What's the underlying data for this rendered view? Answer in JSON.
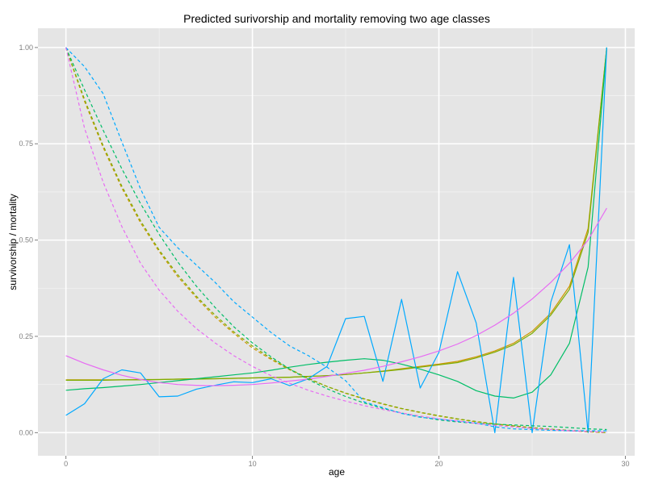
{
  "chart_data": {
    "type": "line",
    "title": "Predicted surivorship and mortality removing two age classes",
    "xlabel": "age",
    "ylabel": "survivorship / mortality",
    "xlim": [
      -1.5,
      30.5
    ],
    "ylim": [
      -0.06,
      1.05
    ],
    "xticks": [
      0,
      10,
      20,
      30
    ],
    "yticks": [
      0.0,
      0.25,
      0.5,
      0.75,
      1.0
    ],
    "ytick_labels": [
      "0.00",
      "0.25",
      "0.50",
      "0.75",
      "1.00"
    ],
    "grid": true,
    "legend": "none",
    "series": [
      {
        "color": "#CD9600",
        "style": "solid",
        "x": [
          0,
          1,
          2,
          3,
          4,
          5,
          6,
          7,
          8,
          9,
          10,
          11,
          12,
          13,
          14,
          15,
          16,
          17,
          18,
          19,
          20,
          21,
          22,
          23,
          24,
          25,
          26,
          27,
          28,
          29
        ],
        "y": [
          0.137,
          0.137,
          0.137,
          0.137,
          0.138,
          0.138,
          0.139,
          0.14,
          0.14,
          0.141,
          0.142,
          0.143,
          0.144,
          0.146,
          0.148,
          0.151,
          0.155,
          0.16,
          0.166,
          0.172,
          0.178,
          0.185,
          0.197,
          0.212,
          0.232,
          0.263,
          0.31,
          0.38,
          0.53,
          1.0
        ]
      },
      {
        "color": "#7CAE00",
        "style": "solid",
        "x": [
          0,
          1,
          2,
          3,
          4,
          5,
          6,
          7,
          8,
          9,
          10,
          11,
          12,
          13,
          14,
          15,
          16,
          17,
          18,
          19,
          20,
          21,
          22,
          23,
          24,
          25,
          26,
          27,
          28,
          29
        ],
        "y": [
          0.136,
          0.136,
          0.136,
          0.137,
          0.137,
          0.138,
          0.139,
          0.139,
          0.14,
          0.141,
          0.142,
          0.143,
          0.144,
          0.146,
          0.148,
          0.151,
          0.155,
          0.159,
          0.164,
          0.17,
          0.176,
          0.182,
          0.194,
          0.209,
          0.228,
          0.258,
          0.305,
          0.372,
          0.52,
          1.0
        ]
      },
      {
        "color": "#00BE67",
        "style": "solid",
        "x": [
          0,
          1,
          2,
          3,
          4,
          5,
          6,
          7,
          8,
          9,
          10,
          11,
          12,
          13,
          14,
          15,
          16,
          17,
          18,
          19,
          20,
          21,
          22,
          23,
          24,
          25,
          26,
          27,
          28,
          29
        ],
        "y": [
          0.11,
          0.114,
          0.117,
          0.121,
          0.125,
          0.13,
          0.135,
          0.14,
          0.145,
          0.15,
          0.155,
          0.162,
          0.17,
          0.177,
          0.183,
          0.188,
          0.192,
          0.188,
          0.178,
          0.165,
          0.15,
          0.133,
          0.109,
          0.095,
          0.09,
          0.105,
          0.15,
          0.232,
          0.43,
          1.0
        ]
      },
      {
        "color": "#00A9FF",
        "style": "solid",
        "x": [
          0,
          1,
          2,
          3,
          4,
          5,
          6,
          7,
          8,
          9,
          10,
          11,
          12,
          13,
          14,
          15,
          16,
          17,
          18,
          19,
          20,
          21,
          22,
          23,
          24,
          25,
          26,
          27,
          28,
          29
        ],
        "y": [
          0.045,
          0.075,
          0.14,
          0.163,
          0.155,
          0.093,
          0.095,
          0.113,
          0.123,
          0.132,
          0.13,
          0.14,
          0.122,
          0.14,
          0.172,
          0.296,
          0.302,
          0.133,
          0.346,
          0.116,
          0.208,
          0.418,
          0.285,
          0.0,
          0.403,
          0.0,
          0.339,
          0.488,
          0.0,
          1.0
        ]
      },
      {
        "color": "#E76BF3",
        "style": "solid",
        "x": [
          0,
          1,
          2,
          3,
          4,
          5,
          6,
          7,
          8,
          9,
          10,
          11,
          12,
          13,
          14,
          15,
          16,
          17,
          18,
          19,
          20,
          21,
          22,
          23,
          24,
          25,
          26,
          27,
          28,
          29
        ],
        "y": [
          0.2,
          0.18,
          0.163,
          0.149,
          0.138,
          0.13,
          0.125,
          0.123,
          0.122,
          0.123,
          0.125,
          0.129,
          0.134,
          0.139,
          0.146,
          0.154,
          0.162,
          0.172,
          0.184,
          0.197,
          0.212,
          0.23,
          0.252,
          0.279,
          0.31,
          0.347,
          0.39,
          0.44,
          0.5,
          0.583
        ]
      },
      {
        "color": "#CD9600",
        "style": "dashed",
        "x": [
          0,
          1,
          2,
          3,
          4,
          5,
          6,
          7,
          8,
          9,
          10,
          11,
          12,
          13,
          14,
          15,
          16,
          17,
          18,
          19,
          20,
          21,
          22,
          23,
          24,
          25,
          26,
          27,
          28,
          29
        ],
        "y": [
          1.0,
          0.86,
          0.74,
          0.635,
          0.545,
          0.47,
          0.405,
          0.35,
          0.3,
          0.258,
          0.22,
          0.19,
          0.163,
          0.14,
          0.12,
          0.102,
          0.087,
          0.074,
          0.062,
          0.052,
          0.043,
          0.035,
          0.028,
          0.022,
          0.017,
          0.012,
          0.008,
          0.005,
          0.002,
          0.0
        ]
      },
      {
        "color": "#7CAE00",
        "style": "dashed",
        "x": [
          0,
          1,
          2,
          3,
          4,
          5,
          6,
          7,
          8,
          9,
          10,
          11,
          12,
          13,
          14,
          15,
          16,
          17,
          18,
          19,
          20,
          21,
          22,
          23,
          24,
          25,
          26,
          27,
          28,
          29
        ],
        "y": [
          1.0,
          0.865,
          0.745,
          0.64,
          0.55,
          0.474,
          0.41,
          0.354,
          0.305,
          0.262,
          0.225,
          0.193,
          0.165,
          0.141,
          0.12,
          0.103,
          0.088,
          0.075,
          0.063,
          0.053,
          0.044,
          0.036,
          0.029,
          0.023,
          0.018,
          0.013,
          0.009,
          0.006,
          0.003,
          0.0
        ]
      },
      {
        "color": "#00BE67",
        "style": "dashed",
        "x": [
          0,
          1,
          2,
          3,
          4,
          5,
          6,
          7,
          8,
          9,
          10,
          11,
          12,
          13,
          14,
          15,
          16,
          17,
          18,
          19,
          20,
          21,
          22,
          23,
          24,
          25,
          26,
          27,
          28,
          29
        ],
        "y": [
          1.0,
          0.89,
          0.785,
          0.685,
          0.595,
          0.515,
          0.443,
          0.38,
          0.325,
          0.275,
          0.233,
          0.197,
          0.165,
          0.138,
          0.114,
          0.094,
          0.077,
          0.063,
          0.051,
          0.041,
          0.033,
          0.028,
          0.024,
          0.022,
          0.02,
          0.018,
          0.016,
          0.013,
          0.01,
          0.008
        ]
      },
      {
        "color": "#00A9FF",
        "style": "dashed",
        "x": [
          0,
          1,
          2,
          3,
          4,
          5,
          6,
          7,
          8,
          9,
          10,
          11,
          12,
          13,
          14,
          15,
          16,
          17,
          18,
          19,
          20,
          21,
          22,
          23,
          24,
          25,
          26,
          27,
          28,
          29
        ],
        "y": [
          1.0,
          0.95,
          0.88,
          0.755,
          0.633,
          0.533,
          0.48,
          0.435,
          0.39,
          0.34,
          0.3,
          0.26,
          0.225,
          0.2,
          0.17,
          0.135,
          0.08,
          0.065,
          0.05,
          0.04,
          0.035,
          0.03,
          0.025,
          0.015,
          0.01,
          0.008,
          0.006,
          0.005,
          0.005,
          0.005
        ]
      },
      {
        "color": "#E76BF3",
        "style": "dashed",
        "x": [
          0,
          1,
          2,
          3,
          4,
          5,
          6,
          7,
          8,
          9,
          10,
          11,
          12,
          13,
          14,
          15,
          16,
          17,
          18,
          19,
          20,
          21,
          22,
          23,
          24,
          25,
          26,
          27,
          28,
          29
        ],
        "y": [
          1.0,
          0.79,
          0.65,
          0.535,
          0.44,
          0.37,
          0.315,
          0.27,
          0.233,
          0.2,
          0.172,
          0.148,
          0.128,
          0.11,
          0.095,
          0.082,
          0.07,
          0.06,
          0.051,
          0.043,
          0.036,
          0.03,
          0.024,
          0.019,
          0.015,
          0.011,
          0.008,
          0.005,
          0.003,
          0.001
        ]
      }
    ]
  }
}
